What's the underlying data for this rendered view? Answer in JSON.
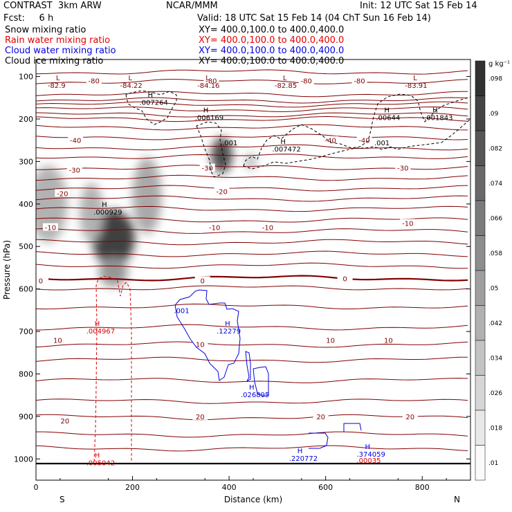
{
  "header": {
    "title_left": "CONTRAST  3km ARW",
    "center": "NCAR/MMM",
    "init": "Init: 12 UTC Sat 15 Feb 14",
    "fcst": "Fcst:     6 h",
    "valid": "Valid: 18 UTC Sat 15 Feb 14 (04 ChT Sun 16 Feb 14)"
  },
  "fields": [
    {
      "name": "Snow mixing ratio",
      "xy": "XY= 400.0,100.0 to 400.0,400.0",
      "color": "#000000"
    },
    {
      "name": "Rain water mixing ratio",
      "xy": "XY= 400.0,100.0 to 400.0,400.0",
      "color": "#e00000"
    },
    {
      "name": "Cloud water mixing ratio",
      "xy": "XY= 400.0,100.0 to 400.0,400.0",
      "color": "#0000e0"
    },
    {
      "name": "Cloud ice mixing ratio",
      "xy": "XY= 400.0,100.0 to 400.0,400.0",
      "color": "#000000"
    }
  ],
  "chart_data": {
    "type": "contour",
    "xlabel": "Distance (km)",
    "ylabel": "Pressure (hPa)",
    "xlim": [
      0,
      900
    ],
    "ylim": [
      1050,
      60
    ],
    "xticks": [
      "0",
      "200",
      "400",
      "600",
      "800"
    ],
    "xtick_values": [
      0,
      200,
      400,
      600,
      800
    ],
    "yticks": [
      "100",
      "200",
      "300",
      "400",
      "500",
      "600",
      "700",
      "800",
      "900",
      "1000"
    ],
    "ytick_values": [
      100,
      200,
      300,
      400,
      500,
      600,
      700,
      800,
      900,
      1000
    ],
    "left_end": "S",
    "right_end": "N",
    "colorbar": {
      "unit": "g kg⁻¹",
      "labels": [
        ".01",
        ".018",
        ".026",
        ".034",
        ".042",
        ".05",
        ".058",
        ".066",
        ".074",
        ".082",
        ".09",
        ".098"
      ],
      "values": [
        0.01,
        0.018,
        0.026,
        0.034,
        0.042,
        0.05,
        0.058,
        0.066,
        0.074,
        0.082,
        0.09,
        0.098
      ]
    },
    "temperature_contours": {
      "color": "#800000",
      "labels": [
        {
          "text": "-80",
          "x": 120,
          "p": 110
        },
        {
          "text": "-80",
          "x": 363,
          "p": 110
        },
        {
          "text": "-80",
          "x": 560,
          "p": 110
        },
        {
          "text": "-80",
          "x": 670,
          "p": 110
        },
        {
          "text": "-40",
          "x": 82,
          "p": 250
        },
        {
          "text": "-40",
          "x": 610,
          "p": 250
        },
        {
          "text": "-40",
          "x": 680,
          "p": 250
        },
        {
          "text": "-30",
          "x": 80,
          "p": 320
        },
        {
          "text": "-30",
          "x": 355,
          "p": 315
        },
        {
          "text": "-30",
          "x": 760,
          "p": 315
        },
        {
          "text": "-20",
          "x": 55,
          "p": 375
        },
        {
          "text": "-20",
          "x": 385,
          "p": 370
        },
        {
          "text": "-10",
          "x": 30,
          "p": 455
        },
        {
          "text": "-10",
          "x": 370,
          "p": 455
        },
        {
          "text": "-10",
          "x": 480,
          "p": 455
        },
        {
          "text": "-10",
          "x": 770,
          "p": 445
        },
        {
          "text": "0",
          "x": 10,
          "p": 580
        },
        {
          "text": "0",
          "x": 345,
          "p": 580
        },
        {
          "text": "0",
          "x": 640,
          "p": 575
        },
        {
          "text": "10",
          "x": 45,
          "p": 720
        },
        {
          "text": "10",
          "x": 340,
          "p": 730
        },
        {
          "text": "10",
          "x": 610,
          "p": 720
        },
        {
          "text": "10",
          "x": 730,
          "p": 720
        },
        {
          "text": "20",
          "x": 60,
          "p": 910
        },
        {
          "text": "20",
          "x": 340,
          "p": 900
        },
        {
          "text": "20",
          "x": 590,
          "p": 900
        },
        {
          "text": "20",
          "x": 775,
          "p": 900
        }
      ]
    },
    "extrema": [
      {
        "text": "-82.9",
        "x": 50,
        "p": 112,
        "color": "#800000",
        "marker": "L"
      },
      {
        "text": "-84.22",
        "x": 200,
        "p": 112,
        "color": "#800000",
        "marker": "L"
      },
      {
        "text": "-84.16",
        "x": 360,
        "p": 112,
        "color": "#800000",
        "marker": "L"
      },
      {
        "text": "-82.85",
        "x": 520,
        "p": 112,
        "color": "#800000",
        "marker": "L"
      },
      {
        "text": "-83.91",
        "x": 790,
        "p": 112,
        "color": "#800000",
        "marker": "L"
      },
      {
        "text": ".007264",
        "x": 240,
        "p": 152,
        "color": "#000000",
        "marker": "H"
      },
      {
        "text": ".006169",
        "x": 355,
        "p": 188,
        "color": "#000000",
        "marker": "H"
      },
      {
        "text": ".00644",
        "x": 730,
        "p": 188,
        "color": "#000000",
        "marker": "H"
      },
      {
        "text": ".001843",
        "x": 830,
        "p": 188,
        "color": "#000000",
        "marker": "H"
      },
      {
        "text": ".007472",
        "x": 515,
        "p": 262,
        "color": "#000000",
        "marker": "H"
      },
      {
        "text": ".000929",
        "x": 145,
        "p": 410,
        "color": "#000000",
        "marker": "H"
      },
      {
        "text": ".004967",
        "x": 130,
        "p": 690,
        "color": "#e00000",
        "marker": "H"
      },
      {
        "text": ".12279",
        "x": 400,
        "p": 690,
        "color": "#0000e0",
        "marker": "H"
      },
      {
        "text": ".026895",
        "x": 450,
        "p": 840,
        "color": "#0000e0",
        "marker": "H"
      },
      {
        "text": ".220772",
        "x": 550,
        "p": 990,
        "color": "#0000e0",
        "marker": "H"
      },
      {
        "text": ".374059",
        "x": 690,
        "p": 980,
        "color": "#0000e0",
        "marker": "H"
      },
      {
        "text": ".00035",
        "x": 690,
        "p": 995,
        "color": "#e00000",
        "marker": ""
      },
      {
        "text": ".005042",
        "x": 130,
        "p": 1000,
        "color": "#e00000",
        "marker": "H"
      }
    ],
    "contour_value_labels": [
      {
        "text": ".001",
        "x": 400,
        "p": 255,
        "color": "#000000"
      },
      {
        "text": ".001",
        "x": 715,
        "p": 255,
        "color": "#000000"
      },
      {
        "text": ".001",
        "x": 300,
        "p": 650,
        "color": "#0000e0"
      }
    ],
    "snow_shading": [
      {
        "x": 160,
        "p": 480,
        "rx": 45,
        "rp": 65,
        "q": 0.09
      },
      {
        "x": 160,
        "p": 560,
        "rx": 30,
        "rp": 35,
        "q": 0.045
      },
      {
        "x": 115,
        "p": 420,
        "rx": 25,
        "rp": 70,
        "q": 0.03
      },
      {
        "x": 230,
        "p": 380,
        "rx": 30,
        "rp": 90,
        "q": 0.035
      },
      {
        "x": 25,
        "p": 400,
        "rx": 40,
        "rp": 90,
        "q": 0.03
      },
      {
        "x": 385,
        "p": 285,
        "rx": 22,
        "rp": 42,
        "q": 0.085
      },
      {
        "x": 445,
        "p": 300,
        "rx": 12,
        "rp": 20,
        "q": 0.025
      }
    ]
  }
}
